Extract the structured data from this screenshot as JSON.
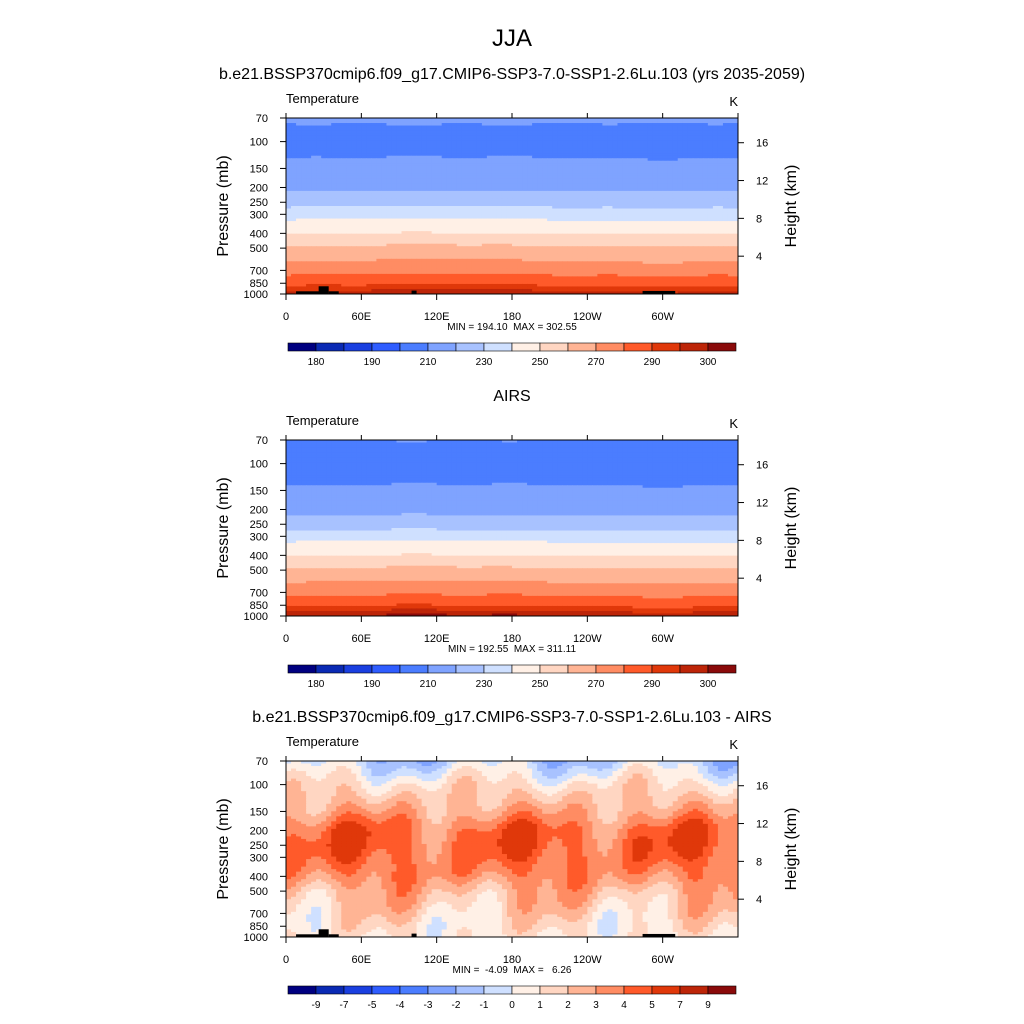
{
  "season": "JJA",
  "colors": {
    "absolute": [
      "#000080",
      "#0a2ab4",
      "#1a3fe0",
      "#2f5dff",
      "#4b7dff",
      "#7fa3ff",
      "#a8c2ff",
      "#cfe0ff",
      "#fff0e6",
      "#ffd6c2",
      "#ffb494",
      "#ff8c63",
      "#ff5a2a",
      "#e0380a",
      "#bd2508",
      "#8a0a0a"
    ],
    "difference": [
      "#000080",
      "#0a2ab4",
      "#1a3fe0",
      "#2f5dff",
      "#4b7dff",
      "#7fa3ff",
      "#a8c2ff",
      "#cfe0ff",
      "#fff0e6",
      "#ffd6c2",
      "#ffb494",
      "#ff8c63",
      "#ff5a2a",
      "#e0380a",
      "#bd2508",
      "#8a0a0a"
    ],
    "terrain": "#000000"
  },
  "chart_data": [
    {
      "type": "heatmap",
      "title": "b.e21.BSSP370cmip6.f09_g17.CMIP6-SSP3-7.0-SSP1-2.6Lu.103 (yrs 2035-2059)",
      "variable": "Temperature",
      "units": "K",
      "ylabel": "Pressure (mb)",
      "y2label": "Height (km)",
      "pressure_ticks": [
        "70",
        "100",
        "150",
        "200",
        "250",
        "300",
        "400",
        "500",
        "700",
        "850",
        "1000"
      ],
      "height_ticks": [
        "16",
        "12",
        "8",
        "4"
      ],
      "longitude_ticks": [
        "0",
        "60E",
        "120E",
        "180",
        "120W",
        "60W"
      ],
      "stats": "MIN = 194.10  MAX = 302.55",
      "min": 194.1,
      "max": 302.55,
      "colorbar_labels": [
        "180",
        "190",
        "210",
        "230",
        "250",
        "270",
        "290",
        "300"
      ],
      "profile_K": [
        [
          70,
          211
        ],
        [
          100,
          207
        ],
        [
          150,
          212
        ],
        [
          200,
          218
        ],
        [
          250,
          226
        ],
        [
          300,
          236
        ],
        [
          400,
          250
        ],
        [
          500,
          262
        ],
        [
          700,
          276
        ],
        [
          850,
          288
        ],
        [
          1000,
          298
        ]
      ],
      "terrain": true
    },
    {
      "type": "heatmap",
      "title": "AIRS",
      "variable": "Temperature",
      "units": "K",
      "ylabel": "Pressure (mb)",
      "y2label": "Height (km)",
      "pressure_ticks": [
        "70",
        "100",
        "150",
        "200",
        "250",
        "300",
        "400",
        "500",
        "700",
        "850",
        "1000"
      ],
      "height_ticks": [
        "16",
        "12",
        "8",
        "4"
      ],
      "longitude_ticks": [
        "0",
        "60E",
        "120E",
        "180",
        "120W",
        "60W"
      ],
      "stats": "MIN = 192.55  MAX = 311.11",
      "min": 192.55,
      "max": 311.11,
      "colorbar_labels": [
        "180",
        "190",
        "210",
        "230",
        "250",
        "270",
        "290",
        "300"
      ],
      "profile_K": [
        [
          70,
          210
        ],
        [
          100,
          206
        ],
        [
          150,
          211
        ],
        [
          200,
          217
        ],
        [
          250,
          225
        ],
        [
          300,
          236
        ],
        [
          400,
          250
        ],
        [
          500,
          262
        ],
        [
          700,
          277
        ],
        [
          850,
          289
        ],
        [
          1000,
          300
        ]
      ],
      "terrain": false
    },
    {
      "type": "heatmap",
      "title": "b.e21.BSSP370cmip6.f09_g17.CMIP6-SSP3-7.0-SSP1-2.6Lu.103 - AIRS",
      "variable": "Temperature",
      "units": "K",
      "ylabel": "Pressure (mb)",
      "y2label": "Height (km)",
      "pressure_ticks": [
        "70",
        "100",
        "150",
        "200",
        "250",
        "300",
        "400",
        "500",
        "700",
        "850",
        "1000"
      ],
      "height_ticks": [
        "16",
        "12",
        "8",
        "4"
      ],
      "longitude_ticks": [
        "0",
        "60E",
        "120E",
        "180",
        "120W",
        "60W"
      ],
      "stats": "MIN =  -4.09  MAX =   6.26",
      "min": -4.09,
      "max": 6.26,
      "colorbar_labels": [
        "-9",
        "-7",
        "-5",
        "-4",
        "-3",
        "-2",
        "-1",
        "0",
        "1",
        "2",
        "3",
        "4",
        "5",
        "7",
        "9"
      ],
      "profile_K": [
        [
          70,
          -1.0
        ],
        [
          100,
          1.2
        ],
        [
          150,
          2.8
        ],
        [
          200,
          4.3
        ],
        [
          250,
          4.5
        ],
        [
          300,
          4.2
        ],
        [
          400,
          3.5
        ],
        [
          500,
          2.5
        ],
        [
          700,
          1.5
        ],
        [
          850,
          1.0
        ],
        [
          1000,
          0.8
        ]
      ],
      "terrain": true
    }
  ]
}
